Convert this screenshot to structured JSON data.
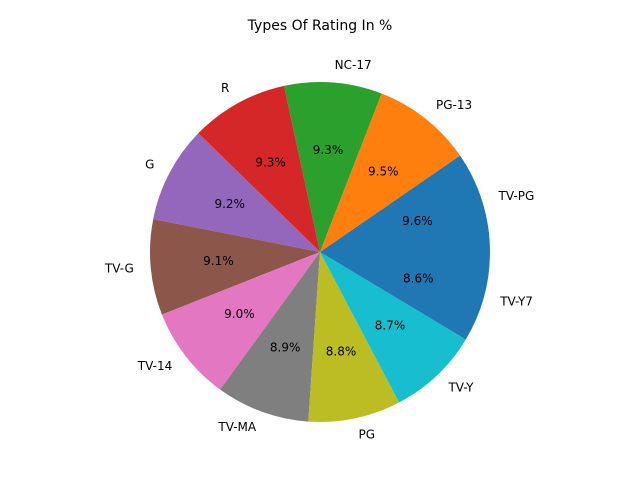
{
  "chart_data": {
    "type": "pie",
    "title": "Types Of Rating In %",
    "autopct_format": "{:.1f}%",
    "start_angle_deg": 0,
    "direction": "counterclockwise",
    "categories": [
      "TV-PG",
      "PG-13",
      "NC-17",
      "R",
      "G",
      "TV-G",
      "TV-14",
      "TV-MA",
      "PG",
      "TV-Y",
      "TV-Y7"
    ],
    "values": [
      9.6,
      9.5,
      9.3,
      9.3,
      9.2,
      9.1,
      9.0,
      8.9,
      8.8,
      8.7,
      8.6
    ],
    "colors": [
      "#1f77b4",
      "#ff7f0e",
      "#2ca02c",
      "#d62728",
      "#9467bd",
      "#8c564b",
      "#e377c2",
      "#7f7f7f",
      "#bcbd22",
      "#17becf",
      "#1f77b4"
    ],
    "legend": "none"
  }
}
